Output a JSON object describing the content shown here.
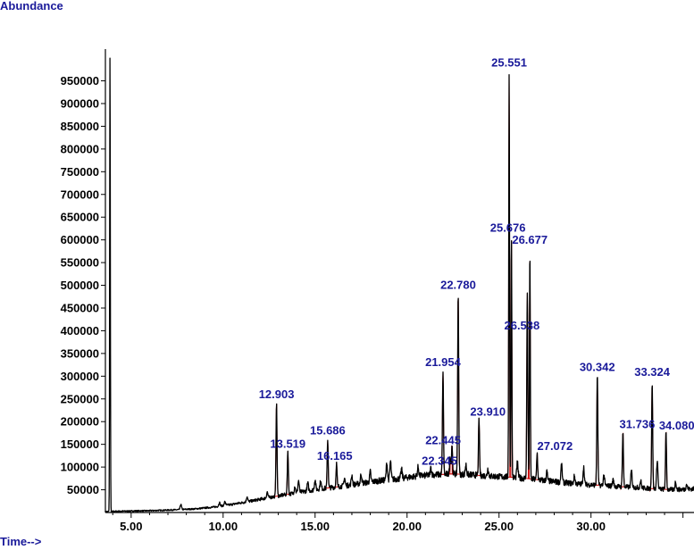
{
  "chart_data": {
    "type": "line",
    "ylabel": "Abundance",
    "xlabel": "Time-->",
    "xlim": [
      3.6,
      35.6
    ],
    "ylim": [
      0,
      1010000
    ],
    "xticks": [
      5,
      10,
      15,
      20,
      25,
      30
    ],
    "xtick_labels": [
      "5.00",
      "10.00",
      "15.00",
      "20.00",
      "25.00",
      "30.00"
    ],
    "yticks": [
      50000,
      100000,
      150000,
      200000,
      250000,
      300000,
      350000,
      400000,
      450000,
      500000,
      550000,
      600000,
      650000,
      700000,
      750000,
      800000,
      850000,
      900000,
      950000
    ],
    "ytick_labels": [
      "50000",
      "100000",
      "150000",
      "200000",
      "250000",
      "300000",
      "350000",
      "400000",
      "450000",
      "500000",
      "550000",
      "600000",
      "650000",
      "700000",
      "750000",
      "800000",
      "850000",
      "900000",
      "950000"
    ],
    "colors": {
      "trace": "#000000",
      "integration": "#cc0000",
      "label": "#1a1a9a",
      "axis": "#000000"
    },
    "solvent_peak": {
      "x": 3.85,
      "y": 1010000
    },
    "baseline": [
      [
        3.6,
        2000
      ],
      [
        4.5,
        3000
      ],
      [
        6.0,
        4000
      ],
      [
        7.5,
        6000
      ],
      [
        8.5,
        8000
      ],
      [
        9.5,
        12000
      ],
      [
        10.5,
        18000
      ],
      [
        11.5,
        25000
      ],
      [
        12.5,
        33000
      ],
      [
        13.5,
        40000
      ],
      [
        14.5,
        47000
      ],
      [
        15.5,
        53000
      ],
      [
        16.5,
        58000
      ],
      [
        17.5,
        64000
      ],
      [
        18.5,
        70000
      ],
      [
        19.5,
        74000
      ],
      [
        20.5,
        80000
      ],
      [
        21.5,
        83000
      ],
      [
        22.5,
        85000
      ],
      [
        23.5,
        83000
      ],
      [
        24.5,
        80000
      ],
      [
        25.5,
        78000
      ],
      [
        26.5,
        75000
      ],
      [
        27.5,
        70000
      ],
      [
        28.5,
        66000
      ],
      [
        29.5,
        62000
      ],
      [
        30.5,
        60000
      ],
      [
        31.5,
        57000
      ],
      [
        32.5,
        55000
      ],
      [
        33.5,
        52000
      ],
      [
        34.5,
        50000
      ],
      [
        35.6,
        52000
      ]
    ],
    "small_peaks": [
      [
        7.7,
        18000
      ],
      [
        9.8,
        22000
      ],
      [
        10.1,
        24000
      ],
      [
        11.3,
        35000
      ],
      [
        12.4,
        45000
      ],
      [
        13.9,
        58000
      ],
      [
        14.1,
        70000
      ],
      [
        14.6,
        65000
      ],
      [
        15.0,
        72000
      ],
      [
        15.3,
        68000
      ],
      [
        16.6,
        76000
      ],
      [
        17.0,
        82000
      ],
      [
        17.5,
        85000
      ],
      [
        18.0,
        90000
      ],
      [
        18.9,
        108000
      ],
      [
        19.1,
        112000
      ],
      [
        19.7,
        95000
      ],
      [
        20.6,
        100000
      ],
      [
        21.3,
        98000
      ],
      [
        23.2,
        105000
      ],
      [
        24.4,
        97000
      ],
      [
        26.0,
        110000
      ],
      [
        27.6,
        90000
      ],
      [
        28.4,
        105000
      ],
      [
        29.1,
        80000
      ],
      [
        29.6,
        100000
      ],
      [
        30.7,
        82000
      ],
      [
        31.2,
        72000
      ],
      [
        32.2,
        92000
      ],
      [
        32.7,
        70000
      ],
      [
        33.6,
        115000
      ],
      [
        34.6,
        68000
      ],
      [
        35.2,
        62000
      ]
    ],
    "peaks": [
      {
        "x": 12.903,
        "label": "12.903",
        "height": 240000
      },
      {
        "x": 13.519,
        "label": "13.519",
        "height": 135000
      },
      {
        "x": 15.686,
        "label": "15.686",
        "height": 160000
      },
      {
        "x": 16.165,
        "label": "16.165",
        "height": 108000
      },
      {
        "x": 21.954,
        "label": "21.954",
        "height": 310000
      },
      {
        "x": 22.345,
        "label": "22.345",
        "height": 125000
      },
      {
        "x": 22.445,
        "label": "22.445",
        "height": 150000
      },
      {
        "x": 22.78,
        "label": "22.780",
        "height": 480000
      },
      {
        "x": 23.91,
        "label": "23.910",
        "height": 205000
      },
      {
        "x": 25.551,
        "label": "25.551",
        "height": 970000
      },
      {
        "x": 25.676,
        "label": "25.676",
        "height": 610000
      },
      {
        "x": 26.538,
        "label": "26.538",
        "height": 485000
      },
      {
        "x": 26.677,
        "label": "26.677",
        "height": 580000
      },
      {
        "x": 27.072,
        "label": "27.072",
        "height": 130000
      },
      {
        "x": 30.342,
        "label": "30.342",
        "height": 300000
      },
      {
        "x": 31.736,
        "label": "31.736",
        "height": 178000
      },
      {
        "x": 33.324,
        "label": "33.324",
        "height": 285000
      },
      {
        "x": 34.08,
        "label": "34.080",
        "height": 175000
      }
    ]
  }
}
